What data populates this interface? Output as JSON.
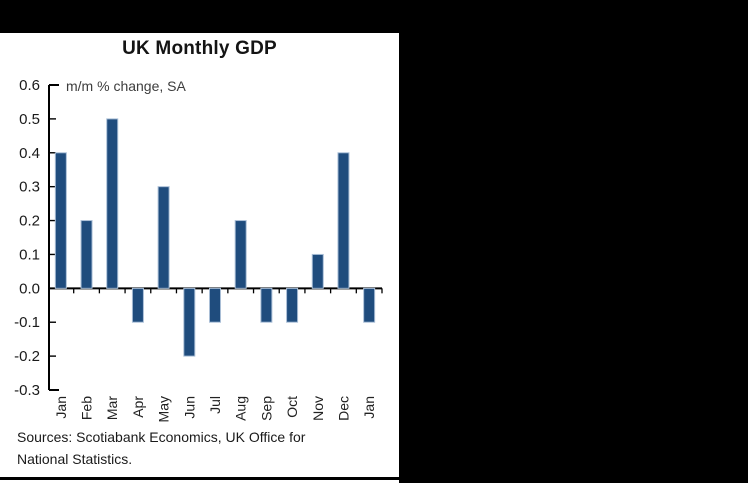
{
  "page": {
    "background": "#000000",
    "panel_background": "#ffffff"
  },
  "chart_data": {
    "type": "bar",
    "title": "UK Monthly GDP",
    "subtitle": "m/m % change, SA",
    "categories": [
      "Jan",
      "Feb",
      "Mar",
      "Apr",
      "May",
      "Jun",
      "Jul",
      "Aug",
      "Sep",
      "Oct",
      "Nov",
      "Dec",
      "Jan"
    ],
    "values": [
      0.4,
      0.2,
      0.5,
      -0.1,
      0.3,
      -0.2,
      -0.1,
      0.2,
      -0.1,
      -0.1,
      0.1,
      0.4,
      -0.1
    ],
    "xlabel": "",
    "ylabel": "",
    "ylim": [
      -0.3,
      0.6
    ],
    "ytick_step": 0.1,
    "ytick_labels": [
      "0.6",
      "0.5",
      "0.4",
      "0.3",
      "0.2",
      "0.1",
      "0.0",
      "-0.1",
      "-0.2",
      "-0.3"
    ],
    "grid": false,
    "legend_position": "none",
    "bar_color": "#1F4C7D",
    "bar_border_color": "#A9BED6",
    "axis_color": "#000000",
    "tick_label_color": "#1a1a1a",
    "source_lines": [
      "Sources: Scotiabank Economics, UK Office for",
      "National Statistics."
    ]
  }
}
